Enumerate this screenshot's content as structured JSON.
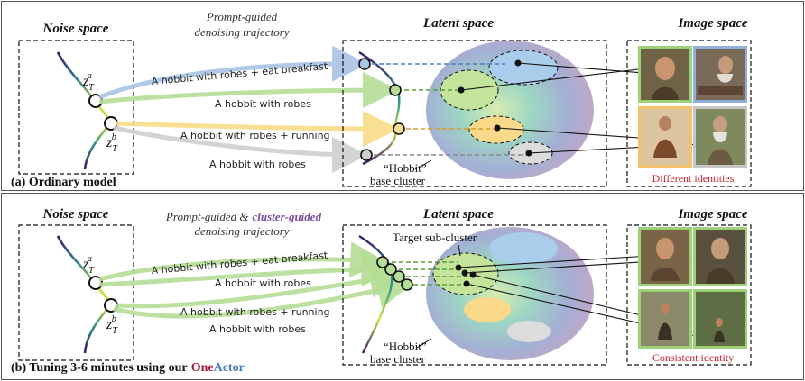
{
  "top": {
    "noise_title": "Noise space",
    "traj_title_1": "Prompt-guided",
    "traj_title_2": "denoising trajectory",
    "latent_title": "Latent space",
    "image_title": "Image space",
    "z_a": "z",
    "z_a_sub": "T",
    "z_a_sup": "a",
    "z_b": "z",
    "z_b_sub": "T",
    "z_b_sup": "b",
    "prompts": [
      "A hobbit with robes + eat breakfast",
      "A hobbit with robes",
      "A hobbit with robes + running",
      "A hobbit with robes"
    ],
    "cluster_label_1": "“Hobbit”",
    "cluster_label_2": "base cluster",
    "caption": "(a) Ordinary model",
    "image_caption": "Different identities"
  },
  "bottom": {
    "noise_title": "Noise space",
    "traj_title_a": "Prompt-guided &",
    "traj_title_b": "cluster-guided",
    "traj_title_2": "denoising trajectory",
    "latent_title": "Latent space",
    "image_title": "Image space",
    "z_a": "z",
    "z_a_sub": "T",
    "z_a_sup": "a",
    "z_b": "z",
    "z_b_sub": "T",
    "z_b_sup": "b",
    "prompts": [
      "A hobbit with robes + eat breakfast",
      "A hobbit with robes",
      "A hobbit with robes + running",
      "A hobbit with robes"
    ],
    "target_label": "Target sub-cluster",
    "cluster_label_1": "“Hobbit”",
    "cluster_label_2": "base cluster",
    "caption_prefix": "(b) Tuning 3-6 minutes using our",
    "caption_one": "One",
    "caption_actor": "Actor",
    "image_caption": "Consistent identity"
  },
  "colors": {
    "traj_blue": "#a9c4e4",
    "traj_green": "#b5dd96",
    "traj_yellow": "#f8de8c",
    "traj_gray": "#cfcfcf",
    "frame_green": "#9ed07a",
    "frame_blue": "#8faedb",
    "frame_orange": "#f2c26b",
    "frame_gray": "#c6c6c6",
    "accent_red": "#cc1f2e",
    "accent_blue": "#4a7ec0"
  }
}
